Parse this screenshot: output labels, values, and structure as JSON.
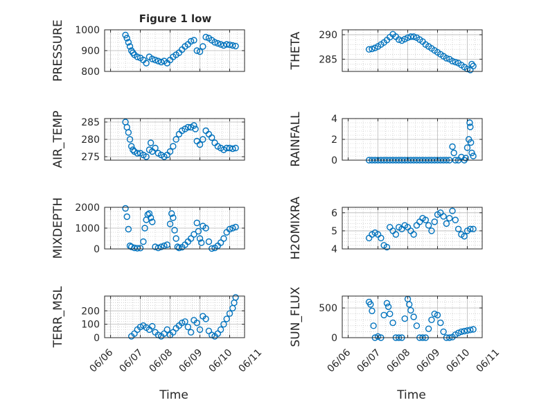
{
  "figure": {
    "title": "Figure 1 low",
    "colors": {
      "marker": "#0072BD",
      "axis": "#262626",
      "grid": "#b8b8b8",
      "background": "#ffffff"
    }
  },
  "chart_data": [
    {
      "type": "scatter",
      "ylabel": "PRESSURE",
      "title": "Figure 1 low",
      "xlim": [
        -0.2,
        4.5
      ],
      "ylim": [
        800,
        1000
      ],
      "yticks": [
        "800",
        "900",
        "1000"
      ],
      "grid": true,
      "x": [
        0.5,
        0.55,
        0.6,
        0.65,
        0.7,
        0.75,
        0.8,
        0.9,
        1.0,
        1.1,
        1.2,
        1.3,
        1.4,
        1.5,
        1.6,
        1.7,
        1.8,
        1.9,
        2.0,
        2.1,
        2.2,
        2.3,
        2.4,
        2.5,
        2.6,
        2.7,
        2.8,
        2.9,
        3.0,
        3.1,
        3.2,
        3.3,
        3.4,
        3.5,
        3.6,
        3.7,
        3.8,
        3.9,
        4.0,
        4.1,
        4.2
      ],
      "y": [
        975,
        960,
        940,
        920,
        900,
        890,
        880,
        870,
        865,
        855,
        840,
        870,
        860,
        855,
        850,
        845,
        850,
        840,
        855,
        870,
        880,
        890,
        905,
        920,
        930,
        945,
        950,
        900,
        895,
        920,
        965,
        960,
        950,
        940,
        935,
        930,
        925,
        930,
        928,
        925,
        922
      ]
    },
    {
      "type": "scatter",
      "ylabel": "THETA",
      "xlim": [
        -0.2,
        4.5
      ],
      "ylim": [
        282.5,
        291
      ],
      "yticks": [
        "285",
        "290"
      ],
      "grid": true,
      "x": [
        0.7,
        0.8,
        0.9,
        1.0,
        1.1,
        1.2,
        1.3,
        1.4,
        1.5,
        1.6,
        1.7,
        1.8,
        1.9,
        2.0,
        2.1,
        2.2,
        2.3,
        2.4,
        2.5,
        2.6,
        2.7,
        2.8,
        2.9,
        3.0,
        3.1,
        3.2,
        3.3,
        3.4,
        3.5,
        3.6,
        3.7,
        3.8,
        3.9,
        4.0,
        4.1,
        4.15,
        4.2
      ],
      "y": [
        287.0,
        287.1,
        287.3,
        287.6,
        288.0,
        288.4,
        288.9,
        289.5,
        290.1,
        289.6,
        289.0,
        288.8,
        289.1,
        289.4,
        289.6,
        289.6,
        289.4,
        289.0,
        288.6,
        288.0,
        287.6,
        287.2,
        286.8,
        286.4,
        286.0,
        285.6,
        285.2,
        285.0,
        284.6,
        284.4,
        284.2,
        283.8,
        283.4,
        283.0,
        282.8,
        284.0,
        283.6
      ]
    },
    {
      "type": "scatter",
      "ylabel": "AIR_TEMP",
      "xlim": [
        -0.2,
        4.5
      ],
      "ylim": [
        274,
        286
      ],
      "yticks": [
        "275",
        "280",
        "285"
      ],
      "grid": true,
      "x": [
        0.5,
        0.55,
        0.6,
        0.65,
        0.7,
        0.75,
        0.8,
        0.9,
        1.0,
        1.1,
        1.2,
        1.3,
        1.35,
        1.4,
        1.5,
        1.6,
        1.7,
        1.8,
        1.9,
        2.0,
        2.1,
        2.2,
        2.3,
        2.4,
        2.5,
        2.6,
        2.7,
        2.8,
        2.85,
        2.9,
        3.0,
        3.1,
        3.2,
        3.3,
        3.4,
        3.5,
        3.6,
        3.7,
        3.8,
        3.9,
        4.0,
        4.1,
        4.2
      ],
      "y": [
        285,
        283.5,
        282,
        280,
        278,
        277,
        276.5,
        276,
        276,
        275.5,
        275,
        277,
        279,
        276.5,
        277.5,
        276,
        275.5,
        275,
        275.5,
        276.5,
        278,
        280,
        281.5,
        282.5,
        283,
        283.5,
        283.5,
        284,
        283,
        279.5,
        278.5,
        280,
        282.5,
        281.5,
        280.5,
        279,
        278,
        277.5,
        277,
        277.5,
        277.5,
        277.3,
        277.5
      ]
    },
    {
      "type": "scatter",
      "ylabel": "RAINFALL",
      "xlim": [
        -0.2,
        4.5
      ],
      "ylim": [
        0,
        4
      ],
      "yticks": [
        "0",
        "2",
        "4"
      ],
      "grid": true,
      "x": [
        0.7,
        0.8,
        0.9,
        1.0,
        1.1,
        1.2,
        1.3,
        1.4,
        1.5,
        1.6,
        1.7,
        1.8,
        1.9,
        2.0,
        2.1,
        2.2,
        2.3,
        2.4,
        2.5,
        2.6,
        2.7,
        2.8,
        2.9,
        3.0,
        3.1,
        3.2,
        3.3,
        3.4,
        3.5,
        3.55,
        3.6,
        3.7,
        3.8,
        3.9,
        3.95,
        4.0,
        4.05,
        4.08,
        4.1,
        4.12,
        4.15,
        4.2
      ],
      "y": [
        0,
        0,
        0,
        0,
        0,
        0,
        0,
        0,
        0,
        0,
        0,
        0,
        0,
        0,
        0,
        0,
        0,
        0,
        0,
        0,
        0,
        0,
        0,
        0,
        0,
        0,
        0,
        0,
        1.3,
        0.7,
        0,
        0,
        0.3,
        0,
        0.2,
        1.2,
        2.0,
        3.6,
        3.2,
        1.7,
        0.7,
        0.4
      ]
    },
    {
      "type": "scatter",
      "ylabel": "MIXDEPTH",
      "xlim": [
        -0.2,
        4.5
      ],
      "ylim": [
        0,
        2000
      ],
      "yticks": [
        "0",
        "1000",
        "2000"
      ],
      "grid": true,
      "x": [
        0.5,
        0.55,
        0.6,
        0.65,
        0.7,
        0.8,
        0.9,
        1.0,
        1.1,
        1.15,
        1.2,
        1.25,
        1.3,
        1.35,
        1.4,
        1.5,
        1.6,
        1.7,
        1.8,
        1.9,
        2.0,
        2.05,
        2.1,
        2.15,
        2.2,
        2.25,
        2.3,
        2.4,
        2.5,
        2.6,
        2.7,
        2.8,
        2.9,
        2.95,
        3.0,
        3.05,
        3.1,
        3.2,
        3.3,
        3.4,
        3.5,
        3.6,
        3.7,
        3.8,
        3.9,
        4.0,
        4.1,
        4.2
      ],
      "y": [
        1950,
        1550,
        950,
        150,
        100,
        50,
        30,
        40,
        350,
        1000,
        1400,
        1650,
        1700,
        1500,
        1300,
        100,
        50,
        100,
        150,
        200,
        1200,
        1700,
        1500,
        900,
        500,
        100,
        50,
        80,
        200,
        350,
        500,
        700,
        1250,
        850,
        500,
        300,
        1100,
        1000,
        350,
        20,
        50,
        150,
        300,
        500,
        800,
        950,
        1000,
        1050
      ]
    },
    {
      "type": "scatter",
      "ylabel": "H2OMIXRA",
      "xlim": [
        -0.2,
        4.5
      ],
      "ylim": [
        4,
        6.3
      ],
      "yticks": [
        "4",
        "5",
        "6"
      ],
      "grid": true,
      "x": [
        0.7,
        0.8,
        0.9,
        1.0,
        1.1,
        1.2,
        1.3,
        1.4,
        1.5,
        1.6,
        1.7,
        1.8,
        1.9,
        2.0,
        2.1,
        2.2,
        2.3,
        2.4,
        2.5,
        2.6,
        2.7,
        2.8,
        2.9,
        3.0,
        3.1,
        3.2,
        3.3,
        3.4,
        3.5,
        3.6,
        3.7,
        3.8,
        3.9,
        4.0,
        4.1,
        4.2
      ],
      "y": [
        4.6,
        4.8,
        4.9,
        4.8,
        4.6,
        4.2,
        4.1,
        5.2,
        5.0,
        4.8,
        5.2,
        5.1,
        5.3,
        5.2,
        5.0,
        4.8,
        5.3,
        5.5,
        5.7,
        5.6,
        5.3,
        5.0,
        5.5,
        5.9,
        6.0,
        5.8,
        5.4,
        5.7,
        6.1,
        5.6,
        5.1,
        4.8,
        4.7,
        5.0,
        5.1,
        5.1
      ]
    },
    {
      "type": "scatter",
      "ylabel": "TERR_MSL",
      "xlim": [
        -0.2,
        4.5
      ],
      "ylim": [
        0,
        310
      ],
      "yticks": [
        "0",
        "100",
        "200"
      ],
      "grid": true,
      "x": [
        0.7,
        0.8,
        0.9,
        1.0,
        1.1,
        1.2,
        1.3,
        1.4,
        1.5,
        1.6,
        1.7,
        1.8,
        1.9,
        2.0,
        2.1,
        2.2,
        2.3,
        2.4,
        2.5,
        2.6,
        2.7,
        2.8,
        2.9,
        3.0,
        3.1,
        3.2,
        3.3,
        3.4,
        3.5,
        3.6,
        3.7,
        3.8,
        3.9,
        4.0,
        4.1,
        4.15,
        4.2
      ],
      "y": [
        10,
        30,
        60,
        80,
        90,
        75,
        60,
        85,
        40,
        20,
        10,
        30,
        60,
        20,
        40,
        70,
        90,
        110,
        120,
        80,
        40,
        130,
        110,
        60,
        160,
        140,
        50,
        20,
        10,
        30,
        60,
        100,
        140,
        180,
        220,
        260,
        300
      ]
    },
    {
      "type": "scatter",
      "ylabel": "SUN_FLUX",
      "xlim": [
        -0.2,
        4.5
      ],
      "ylim": [
        0,
        700
      ],
      "yticks": [
        "0",
        "500"
      ],
      "grid": true,
      "x": [
        0.7,
        0.75,
        0.8,
        0.85,
        0.9,
        1.0,
        1.1,
        1.2,
        1.3,
        1.35,
        1.4,
        1.5,
        1.6,
        1.7,
        1.8,
        1.9,
        2.0,
        2.05,
        2.1,
        2.2,
        2.3,
        2.4,
        2.5,
        2.6,
        2.7,
        2.8,
        2.9,
        3.0,
        3.1,
        3.2,
        3.3,
        3.4,
        3.5,
        3.6,
        3.7,
        3.8,
        3.9,
        4.0,
        4.1,
        4.2
      ],
      "y": [
        600,
        560,
        450,
        200,
        0,
        20,
        0,
        380,
        580,
        520,
        400,
        250,
        0,
        0,
        0,
        320,
        650,
        560,
        460,
        350,
        200,
        0,
        0,
        0,
        150,
        300,
        400,
        380,
        250,
        100,
        0,
        0,
        10,
        50,
        80,
        100,
        110,
        120,
        130,
        140
      ]
    }
  ],
  "x_axis": {
    "tick_labels": [
      "06/06",
      "06/07",
      "06/08",
      "06/09",
      "06/10",
      "06/11"
    ],
    "label": "Time"
  }
}
